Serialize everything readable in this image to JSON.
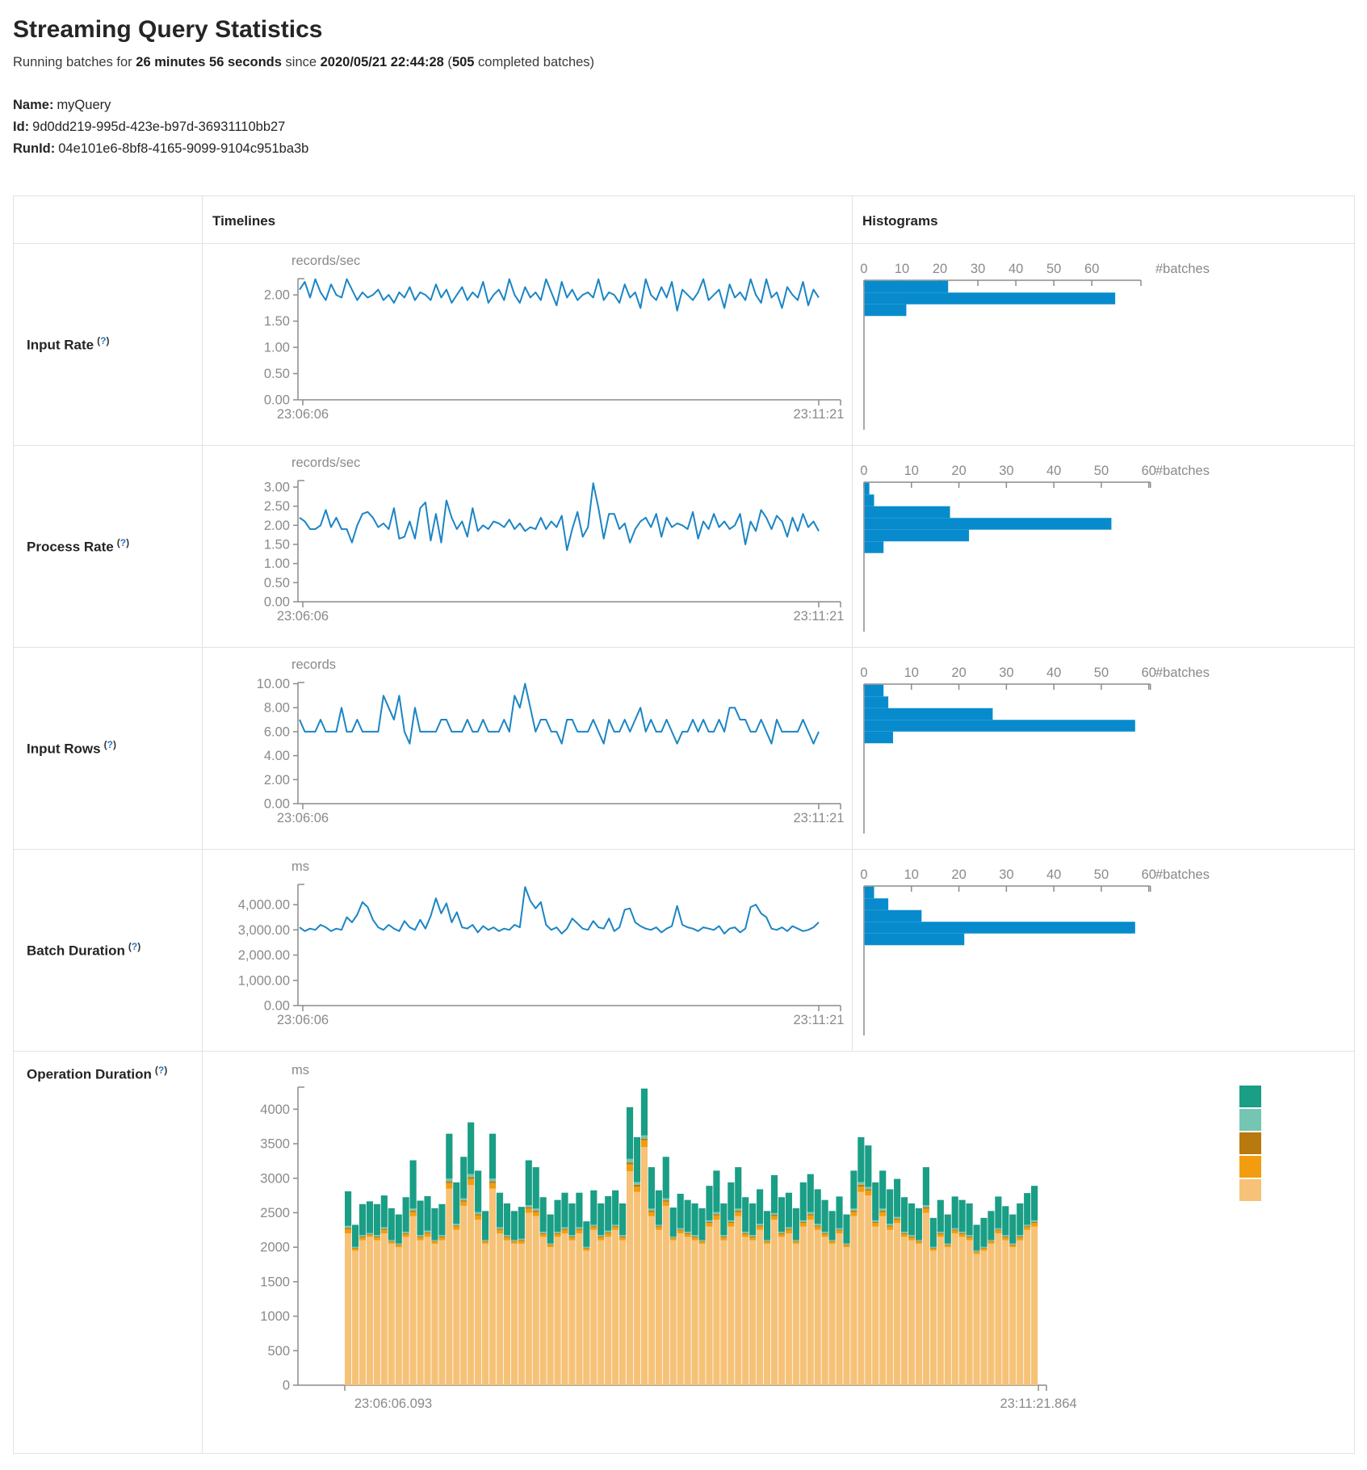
{
  "page": {
    "title": "Streaming Query Statistics",
    "subtitle": {
      "prefix": "Running batches for ",
      "duration": "26 minutes 56 seconds",
      "mid": " since ",
      "start_time": "2020/05/21 22:44:28",
      "paren": " (",
      "batches": "505",
      "suffix": " completed batches)"
    },
    "name_label": "Name:",
    "name_value": "myQuery",
    "id_label": "Id:",
    "id_value": "9d0dd219-995d-423e-b97d-36931110bb27",
    "runid_label": "RunId:",
    "runid_value": "04e101e6-8bf8-4165-9099-9104c951ba3b",
    "help": {
      "open": "(",
      "q": "?",
      "close": ")"
    }
  },
  "table": {
    "col_timelines": "Timelines",
    "col_histograms": "Histograms"
  },
  "colors": {
    "line_blue": "#1b85c4",
    "hist_blue": "#078bcd",
    "axis": "#8c8c8c",
    "axis_text": "#8a8a8a",
    "stack_teal": "#1a9e85",
    "stack_light_teal": "#74c6b3",
    "stack_dark_orange": "#b8790f",
    "stack_orange": "#f29d0f",
    "stack_tan": "#f6c277"
  },
  "chart_data": [
    {
      "row": "Input Rate",
      "type": "line",
      "unit": "records/sec",
      "x_start": "23:06:06",
      "x_end": "23:11:21",
      "ylim": [
        0,
        2.31
      ],
      "yticks": [
        {
          "v": 2,
          "label": "2.00"
        },
        {
          "v": 1.5,
          "label": "1.50"
        },
        {
          "v": 1,
          "label": "1.00"
        },
        {
          "v": 0.5,
          "label": "0.50"
        },
        {
          "v": 0,
          "label": "0.00"
        }
      ],
      "values": [
        2.1,
        2.25,
        1.95,
        2.3,
        2.05,
        1.9,
        2.2,
        2.0,
        1.95,
        2.3,
        2.1,
        1.9,
        2.05,
        1.95,
        2.0,
        2.1,
        1.9,
        2.0,
        1.85,
        2.05,
        1.95,
        2.15,
        1.9,
        2.05,
        2.0,
        1.9,
        2.2,
        1.95,
        2.1,
        1.85,
        2.0,
        2.15,
        1.9,
        2.05,
        1.95,
        2.25,
        1.85,
        2.0,
        2.1,
        1.9,
        2.3,
        2.0,
        1.85,
        2.15,
        1.95,
        2.05,
        1.9,
        2.3,
        2.05,
        1.8,
        2.25,
        1.95,
        2.1,
        1.9,
        2.0,
        2.05,
        1.95,
        2.3,
        1.9,
        2.05,
        2.0,
        1.85,
        2.2,
        1.95,
        2.05,
        1.75,
        2.3,
        2.0,
        1.9,
        2.15,
        1.95,
        2.25,
        1.7,
        2.1,
        2.0,
        1.9,
        2.05,
        2.3,
        1.9,
        2.0,
        2.1,
        1.75,
        2.2,
        1.95,
        2.05,
        1.9,
        2.3,
        2.0,
        1.85,
        2.3,
        1.95,
        2.05,
        1.75,
        2.15,
        2.0,
        1.9,
        2.25,
        1.8,
        2.1,
        1.95
      ],
      "histogram": {
        "type": "bar",
        "orientation": "horizontal",
        "xlabel": "#batches",
        "ticks": [
          0,
          10,
          20,
          30,
          40,
          50,
          60
        ],
        "axis_max": 72.5,
        "bins": [
          22,
          66,
          11
        ]
      }
    },
    {
      "row": "Process Rate",
      "type": "line",
      "unit": "records/sec",
      "x_start": "23:06:06",
      "x_end": "23:11:21",
      "ylim": [
        0,
        3.17
      ],
      "yticks": [
        {
          "v": 3,
          "label": "3.00"
        },
        {
          "v": 2.5,
          "label": "2.50"
        },
        {
          "v": 2,
          "label": "2.00"
        },
        {
          "v": 1.5,
          "label": "1.50"
        },
        {
          "v": 1,
          "label": "1.00"
        },
        {
          "v": 0.5,
          "label": "0.50"
        },
        {
          "v": 0,
          "label": "0.00"
        }
      ],
      "values": [
        2.2,
        2.1,
        1.9,
        1.9,
        2.0,
        2.4,
        1.95,
        2.2,
        1.9,
        1.9,
        1.55,
        2.0,
        2.3,
        2.35,
        2.2,
        1.95,
        2.05,
        1.9,
        2.45,
        1.65,
        1.7,
        2.1,
        1.65,
        2.45,
        2.6,
        1.6,
        2.3,
        1.55,
        2.65,
        2.2,
        1.9,
        2.1,
        1.7,
        2.45,
        1.85,
        2.0,
        1.9,
        2.1,
        2.05,
        1.95,
        2.15,
        1.9,
        2.05,
        1.85,
        1.95,
        1.9,
        2.2,
        1.9,
        2.1,
        1.95,
        2.25,
        1.35,
        1.9,
        2.35,
        1.7,
        1.95,
        3.1,
        2.45,
        1.65,
        2.3,
        2.3,
        1.9,
        2.05,
        1.55,
        1.9,
        2.1,
        2.2,
        1.95,
        2.3,
        1.7,
        2.2,
        1.95,
        2.05,
        2.0,
        1.9,
        2.35,
        1.65,
        2.1,
        1.9,
        2.3,
        1.95,
        2.1,
        1.9,
        2.0,
        2.3,
        1.5,
        2.1,
        1.85,
        2.4,
        2.2,
        1.9,
        2.25,
        2.1,
        1.7,
        2.2,
        1.85,
        2.3,
        1.95,
        2.1,
        1.85
      ],
      "histogram": {
        "type": "bar",
        "orientation": "horizontal",
        "xlabel": "#batches",
        "ticks": [
          0,
          10,
          20,
          30,
          40,
          50,
          60
        ],
        "axis_max": 58,
        "bins": [
          1,
          2,
          18,
          52,
          22,
          4
        ]
      }
    },
    {
      "row": "Input Rows",
      "type": "line",
      "unit": "records",
      "x_start": "23:06:06",
      "x_end": "23:11:21",
      "ylim": [
        0,
        10.1
      ],
      "yticks": [
        {
          "v": 10,
          "label": "10.00"
        },
        {
          "v": 8,
          "label": "8.00"
        },
        {
          "v": 6,
          "label": "6.00"
        },
        {
          "v": 4,
          "label": "4.00"
        },
        {
          "v": 2,
          "label": "2.00"
        },
        {
          "v": 0,
          "label": "0.00"
        }
      ],
      "values": [
        7,
        6,
        6,
        6,
        7,
        6,
        6,
        6,
        8,
        6,
        6,
        7,
        6,
        6,
        6,
        6,
        9,
        8,
        7,
        9,
        6,
        5,
        8,
        6,
        6,
        6,
        6,
        7,
        7,
        6,
        6,
        6,
        7,
        6,
        6,
        7,
        6,
        6,
        6,
        7,
        6,
        9,
        8,
        10,
        8,
        6,
        7,
        7,
        6,
        6,
        5,
        7,
        7,
        6,
        6,
        6,
        7,
        6,
        5,
        7,
        6,
        6,
        7,
        6,
        7,
        8,
        6,
        7,
        6,
        6,
        7,
        6,
        5,
        6,
        6,
        7,
        6,
        7,
        6,
        6,
        7,
        6,
        8,
        8,
        7,
        7,
        6,
        6,
        7,
        6,
        5,
        7,
        6,
        6,
        6,
        6,
        7,
        6,
        5,
        6
      ],
      "histogram": {
        "type": "bar",
        "orientation": "horizontal",
        "xlabel": "#batches",
        "ticks": [
          0,
          10,
          20,
          30,
          40,
          50,
          60
        ],
        "axis_max": 58,
        "bins": [
          4,
          5,
          27,
          57,
          6
        ]
      }
    },
    {
      "row": "Batch Duration",
      "type": "line",
      "unit": "ms",
      "x_start": "23:06:06",
      "x_end": "23:11:21",
      "ylim": [
        0,
        4800
      ],
      "yticks": [
        {
          "v": 4000,
          "label": "4,000.00"
        },
        {
          "v": 3000,
          "label": "3,000.00"
        },
        {
          "v": 2000,
          "label": "2,000.00"
        },
        {
          "v": 1000,
          "label": "1,000.00"
        },
        {
          "v": 0,
          "label": "0.00"
        }
      ],
      "values": [
        3100,
        2950,
        3050,
        3000,
        3200,
        3100,
        2950,
        3050,
        3000,
        3500,
        3300,
        3600,
        4100,
        3900,
        3400,
        3100,
        3000,
        3200,
        3050,
        2950,
        3350,
        3100,
        3000,
        3400,
        3050,
        3550,
        4250,
        3650,
        4050,
        3300,
        3700,
        3100,
        3050,
        3200,
        2900,
        3150,
        3000,
        3100,
        2950,
        3050,
        3000,
        3200,
        3100,
        4700,
        4150,
        3850,
        4100,
        3200,
        3000,
        3100,
        2850,
        3050,
        3450,
        3250,
        3050,
        3000,
        3350,
        3100,
        3050,
        3450,
        2950,
        3100,
        3800,
        3850,
        3300,
        3150,
        3050,
        3000,
        3100,
        2900,
        3050,
        3150,
        3950,
        3200,
        3100,
        3050,
        2950,
        3100,
        3050,
        3000,
        3150,
        2850,
        3050,
        3100,
        2900,
        3050,
        3900,
        4000,
        3650,
        3500,
        3050,
        3000,
        3100,
        2950,
        3150,
        3050,
        2950,
        3000,
        3100,
        3300
      ],
      "histogram": {
        "type": "bar",
        "orientation": "horizontal",
        "xlabel": "#batches",
        "ticks": [
          0,
          10,
          20,
          30,
          40,
          50,
          60
        ],
        "axis_max": 58,
        "bins": [
          2,
          5,
          12,
          57,
          21
        ]
      }
    },
    {
      "row": "Operation Duration",
      "type": "stacked-bar",
      "unit": "ms",
      "x_start": "23:06:06.093",
      "x_end": "23:11:21.864",
      "ylim": [
        0,
        4320
      ],
      "yticks": [
        {
          "v": 4000,
          "label": "4000"
        },
        {
          "v": 3500,
          "label": "3500"
        },
        {
          "v": 3000,
          "label": "3000"
        },
        {
          "v": 2500,
          "label": "2500"
        },
        {
          "v": 2000,
          "label": "2000"
        },
        {
          "v": 1500,
          "label": "1500"
        },
        {
          "v": 1000,
          "label": "1000"
        },
        {
          "v": 500,
          "label": "500"
        },
        {
          "v": 0,
          "label": "0"
        }
      ],
      "legend_swatches": [
        "#1a9e85",
        "#74c6b3",
        "#b8790f",
        "#f29d0f",
        "#f6c277"
      ],
      "series": [
        {
          "name": "tan",
          "color": "#f6c277",
          "values": [
            2200,
            1950,
            2100,
            2150,
            2100,
            2200,
            2050,
            2000,
            2150,
            2450,
            2100,
            2150,
            2050,
            2100,
            2850,
            2250,
            2600,
            2900,
            2400,
            2050,
            2850,
            2200,
            2100,
            2050,
            2050,
            2500,
            2450,
            2150,
            2000,
            2150,
            2200,
            2100,
            2200,
            1950,
            2250,
            2100,
            2150,
            2250,
            2100,
            3100,
            2800,
            3450,
            2450,
            2250,
            2600,
            2100,
            2200,
            2150,
            2100,
            2050,
            2300,
            2400,
            2100,
            2300,
            2450,
            2150,
            2100,
            2250,
            2050,
            2400,
            2150,
            2200,
            2050,
            2300,
            2400,
            2250,
            2150,
            2050,
            2200,
            2000,
            2450,
            2800,
            2750,
            2300,
            2450,
            2250,
            2350,
            2150,
            2100,
            2050,
            2500,
            1950,
            2150,
            2000,
            2200,
            2150,
            2100,
            1900,
            1950,
            2050,
            2200,
            2100,
            2000,
            2100,
            2250,
            2300
          ]
        },
        {
          "name": "orange",
          "color": "#f29d0f",
          "values": [
            60,
            30,
            40,
            30,
            40,
            50,
            30,
            30,
            40,
            60,
            40,
            50,
            30,
            40,
            80,
            50,
            60,
            90,
            60,
            30,
            80,
            50,
            40,
            30,
            40,
            60,
            60,
            40,
            30,
            40,
            50,
            40,
            50,
            30,
            40,
            40,
            50,
            40,
            40,
            100,
            80,
            100,
            60,
            40,
            60,
            30,
            40,
            40,
            40,
            30,
            50,
            60,
            40,
            50,
            60,
            40,
            40,
            50,
            30,
            50,
            40,
            50,
            30,
            50,
            60,
            50,
            40,
            30,
            40,
            30,
            60,
            80,
            70,
            50,
            60,
            50,
            50,
            40,
            40,
            30,
            60,
            30,
            40,
            30,
            40,
            40,
            40,
            30,
            30,
            30,
            40,
            40,
            30,
            40,
            40,
            50
          ]
        },
        {
          "name": "dark-orange",
          "color": "#b8790f",
          "values": [
            20,
            10,
            15,
            10,
            15,
            15,
            10,
            10,
            15,
            20,
            15,
            15,
            10,
            15,
            25,
            15,
            20,
            25,
            20,
            10,
            25,
            15,
            15,
            10,
            15,
            20,
            20,
            15,
            10,
            15,
            15,
            15,
            15,
            10,
            15,
            15,
            15,
            15,
            15,
            30,
            25,
            25,
            20,
            15,
            20,
            10,
            15,
            15,
            15,
            10,
            15,
            20,
            15,
            15,
            20,
            15,
            15,
            15,
            10,
            20,
            15,
            15,
            10,
            15,
            20,
            15,
            15,
            10,
            15,
            10,
            20,
            25,
            20,
            15,
            20,
            15,
            15,
            15,
            15,
            10,
            20,
            10,
            15,
            10,
            15,
            15,
            15,
            10,
            10,
            10,
            15,
            15,
            10,
            15,
            15,
            15
          ]
        },
        {
          "name": "light-teal",
          "color": "#74c6b3",
          "values": [
            30,
            15,
            20,
            15,
            20,
            25,
            15,
            15,
            20,
            30,
            20,
            25,
            15,
            20,
            40,
            25,
            30,
            45,
            30,
            15,
            40,
            25,
            20,
            15,
            20,
            30,
            30,
            20,
            15,
            20,
            25,
            20,
            25,
            15,
            20,
            20,
            25,
            20,
            20,
            50,
            40,
            45,
            30,
            20,
            30,
            15,
            20,
            20,
            20,
            15,
            25,
            30,
            20,
            25,
            30,
            20,
            20,
            25,
            15,
            25,
            20,
            25,
            15,
            25,
            30,
            25,
            20,
            15,
            20,
            15,
            30,
            40,
            35,
            25,
            30,
            25,
            25,
            20,
            20,
            15,
            30,
            15,
            20,
            15,
            20,
            20,
            20,
            15,
            15,
            15,
            20,
            20,
            15,
            20,
            20,
            25
          ]
        },
        {
          "name": "teal",
          "color": "#1a9e85",
          "values": [
            500,
            320,
            450,
            460,
            450,
            460,
            460,
            420,
            500,
            700,
            500,
            500,
            460,
            450,
            650,
            600,
            600,
            750,
            600,
            420,
            650,
            500,
            460,
            420,
            460,
            650,
            600,
            500,
            420,
            460,
            500,
            460,
            500,
            370,
            500,
            460,
            500,
            500,
            460,
            750,
            650,
            680,
            600,
            500,
            600,
            420,
            500,
            460,
            460,
            460,
            500,
            600,
            460,
            550,
            600,
            500,
            460,
            500,
            420,
            550,
            500,
            500,
            460,
            550,
            550,
            500,
            460,
            420,
            460,
            420,
            550,
            650,
            600,
            550,
            550,
            500,
            550,
            500,
            460,
            460,
            550,
            420,
            460,
            420,
            460,
            460,
            460,
            370,
            420,
            420,
            460,
            420,
            420,
            460,
            460,
            500
          ]
        }
      ]
    }
  ]
}
